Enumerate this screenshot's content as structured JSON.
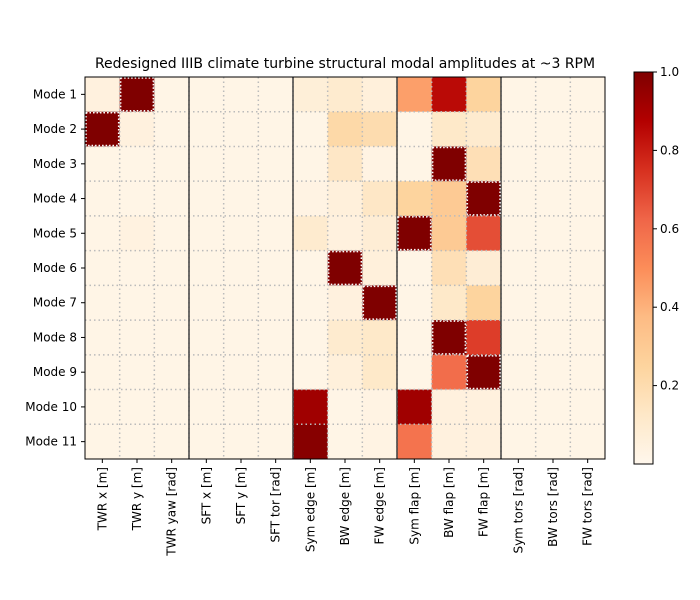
{
  "chart_data": {
    "type": "heatmap",
    "title": "Redesigned IIIB climate turbine structural modal amplitudes at ~3 RPM",
    "rows": [
      "Mode 1",
      "Mode 2",
      "Mode 3",
      "Mode 4",
      "Mode 5",
      "Mode 6",
      "Mode 7",
      "Mode 8",
      "Mode 9",
      "Mode 10",
      "Mode 11"
    ],
    "columns": [
      "TWR x [m]",
      "TWR y [m]",
      "TWR yaw [rad]",
      "SFT x [m]",
      "SFT y [m]",
      "SFT tor [rad]",
      "Sym edge [m]",
      "BW edge [m]",
      "FW edge [m]",
      "Sym flap [m]",
      "BW flap [m]",
      "FW flap [m]",
      "Sym tors [rad]",
      "BW tors [rad]",
      "FW tors [rad]"
    ],
    "values": [
      [
        0.05,
        1.0,
        0.02,
        0.02,
        0.02,
        0.02,
        0.07,
        0.1,
        0.06,
        0.45,
        0.85,
        0.25,
        0.02,
        0.02,
        0.02
      ],
      [
        1.0,
        0.05,
        0.02,
        0.02,
        0.02,
        0.02,
        0.02,
        0.22,
        0.2,
        0.02,
        0.12,
        0.1,
        0.02,
        0.02,
        0.02
      ],
      [
        0.02,
        0.02,
        0.02,
        0.02,
        0.02,
        0.02,
        0.02,
        0.13,
        0.03,
        0.02,
        1.0,
        0.18,
        0.02,
        0.02,
        0.02
      ],
      [
        0.02,
        0.02,
        0.02,
        0.02,
        0.02,
        0.02,
        0.03,
        0.06,
        0.13,
        0.25,
        0.3,
        1.0,
        0.02,
        0.02,
        0.02
      ],
      [
        0.02,
        0.04,
        0.02,
        0.02,
        0.02,
        0.02,
        0.1,
        0.05,
        0.08,
        1.0,
        0.3,
        0.68,
        0.02,
        0.02,
        0.02
      ],
      [
        0.02,
        0.02,
        0.02,
        0.02,
        0.02,
        0.02,
        0.02,
        1.0,
        0.06,
        0.02,
        0.18,
        0.08,
        0.02,
        0.02,
        0.02
      ],
      [
        0.02,
        0.02,
        0.02,
        0.02,
        0.02,
        0.02,
        0.02,
        0.05,
        1.0,
        0.02,
        0.12,
        0.25,
        0.02,
        0.02,
        0.02
      ],
      [
        0.02,
        0.02,
        0.02,
        0.02,
        0.02,
        0.02,
        0.02,
        0.1,
        0.12,
        0.02,
        1.0,
        0.72,
        0.02,
        0.02,
        0.02
      ],
      [
        0.02,
        0.02,
        0.02,
        0.02,
        0.02,
        0.02,
        0.02,
        0.06,
        0.12,
        0.02,
        0.6,
        1.0,
        0.02,
        0.02,
        0.02
      ],
      [
        0.02,
        0.02,
        0.02,
        0.02,
        0.02,
        0.02,
        0.92,
        0.02,
        0.03,
        0.92,
        0.05,
        0.05,
        0.02,
        0.02,
        0.02
      ],
      [
        0.02,
        0.02,
        0.02,
        0.02,
        0.02,
        0.02,
        0.98,
        0.02,
        0.03,
        0.58,
        0.05,
        0.05,
        0.02,
        0.02,
        0.02
      ]
    ],
    "colorbar": {
      "colormap": "OrRd",
      "range": [
        0,
        1
      ],
      "ticks": [
        "0.2",
        "0.4",
        "0.6",
        "0.8",
        "1.0"
      ]
    },
    "group_separators_after_columns": [
      3,
      6,
      9,
      12
    ],
    "grid": "dotted",
    "highlight": "dotted white outline on cells with value 1.0"
  }
}
